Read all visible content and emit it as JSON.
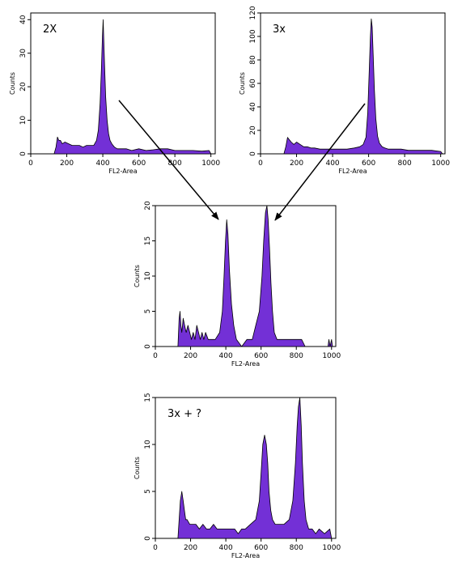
{
  "chart_data": [
    {
      "type": "area",
      "annotation": "2X",
      "xlabel": "FL2-Area",
      "ylabel": "Counts",
      "xlim": [
        0,
        1024
      ],
      "ylim": [
        0,
        42
      ],
      "xticks": [
        0,
        200,
        400,
        600,
        800,
        1000
      ],
      "yticks": [
        0,
        10,
        20,
        30,
        40
      ],
      "series": [
        {
          "x": [
            130,
            140,
            148,
            156,
            165,
            175,
            190,
            210,
            230,
            250,
            270,
            290,
            310,
            330,
            350,
            365,
            375,
            385,
            392,
            398,
            402,
            406,
            410,
            416,
            424,
            432,
            440,
            450,
            465,
            480,
            500,
            530,
            560,
            600,
            640,
            680,
            720,
            760,
            800,
            850,
            900,
            950,
            990,
            1000
          ],
          "y": [
            0,
            2,
            5,
            4,
            4,
            3,
            3.5,
            3,
            2.5,
            2.5,
            2.5,
            2,
            2.5,
            2.5,
            2.5,
            4,
            7,
            15,
            25,
            35,
            40,
            33,
            26,
            17,
            10,
            6,
            4,
            3,
            2,
            1.5,
            1.5,
            1.5,
            1,
            1.5,
            1,
            1.2,
            1.5,
            1.5,
            1,
            1,
            1,
            0.8,
            1,
            0
          ]
        }
      ]
    },
    {
      "type": "area",
      "annotation": "3x",
      "xlabel": "FL2-Area",
      "ylabel": "Counts",
      "xlim": [
        0,
        1024
      ],
      "ylim": [
        0,
        120
      ],
      "xticks": [
        0,
        200,
        400,
        600,
        800,
        1000
      ],
      "yticks": [
        0,
        20,
        40,
        60,
        80,
        100,
        120
      ],
      "series": [
        {
          "x": [
            130,
            140,
            150,
            160,
            170,
            185,
            200,
            220,
            240,
            260,
            280,
            300,
            330,
            360,
            400,
            440,
            480,
            520,
            550,
            570,
            585,
            595,
            603,
            610,
            615,
            620,
            625,
            632,
            640,
            650,
            660,
            675,
            690,
            710,
            740,
            780,
            820,
            860,
            900,
            950,
            1000,
            1010
          ],
          "y": [
            0,
            6,
            14,
            12,
            10,
            8,
            10,
            8,
            6,
            6,
            5,
            5,
            4,
            4,
            4,
            4,
            4,
            5,
            6,
            8,
            14,
            35,
            70,
            100,
            115,
            108,
            85,
            55,
            30,
            15,
            9,
            6,
            5,
            4,
            4,
            4,
            3,
            3,
            3,
            3,
            2,
            0
          ]
        }
      ]
    },
    {
      "type": "area",
      "annotation": "",
      "xlabel": "FL2-Area",
      "ylabel": "Counts",
      "xlim": [
        0,
        1024
      ],
      "ylim": [
        0,
        20
      ],
      "xticks": [
        0,
        200,
        400,
        600,
        800,
        1000
      ],
      "yticks": [
        0,
        5,
        10,
        15,
        20
      ],
      "series": [
        {
          "x": [
            128,
            135,
            140,
            145,
            150,
            158,
            166,
            175,
            185,
            195,
            205,
            215,
            225,
            235,
            245,
            255,
            265,
            275,
            285,
            300,
            340,
            365,
            380,
            390,
            398,
            405,
            412,
            420,
            432,
            445,
            460,
            490,
            520,
            550,
            570,
            590,
            605,
            615,
            625,
            633,
            640,
            648,
            656,
            665,
            675,
            690,
            700,
            720,
            760,
            800,
            830,
            850,
            900,
            950,
            980,
            985,
            992,
            1000,
            1005
          ],
          "y": [
            0,
            4,
            5,
            3,
            2,
            4,
            3,
            2,
            3,
            2,
            1,
            2,
            1,
            3,
            2,
            1,
            2,
            1,
            2,
            1,
            1,
            2,
            5,
            10,
            15,
            18,
            16,
            11,
            6,
            3,
            1,
            0,
            1,
            1,
            3,
            5,
            10,
            15,
            19,
            20,
            18,
            14,
            9,
            5,
            2,
            1,
            1,
            1,
            1,
            1,
            1,
            0,
            0,
            0,
            0,
            1,
            0,
            1,
            0
          ]
        }
      ]
    },
    {
      "type": "area",
      "annotation": "3x + ?",
      "xlabel": "FL2-Area",
      "ylabel": "Counts",
      "xlim": [
        0,
        1024
      ],
      "ylim": [
        0,
        15
      ],
      "xticks": [
        0,
        200,
        400,
        600,
        800,
        1000
      ],
      "yticks": [
        0,
        5,
        10,
        15
      ],
      "series": [
        {
          "x": [
            128,
            135,
            142,
            150,
            158,
            165,
            172,
            180,
            195,
            210,
            230,
            250,
            270,
            290,
            310,
            330,
            350,
            370,
            390,
            410,
            430,
            450,
            470,
            490,
            510,
            540,
            570,
            590,
            600,
            610,
            620,
            630,
            638,
            645,
            655,
            665,
            680,
            700,
            730,
            760,
            780,
            795,
            805,
            812,
            820,
            828,
            835,
            845,
            855,
            870,
            890,
            910,
            930,
            960,
            990,
            1000
          ],
          "y": [
            0,
            2,
            4,
            5,
            4,
            3,
            2,
            2,
            1.5,
            1.5,
            1.5,
            1,
            1.5,
            1,
            1,
            1.5,
            1,
            1,
            1,
            1,
            1,
            1,
            0.5,
            1,
            1,
            1.5,
            2,
            4,
            7,
            10,
            11,
            10,
            8,
            5,
            3,
            2,
            1.5,
            1.5,
            1.5,
            2,
            4,
            8,
            12,
            14,
            15,
            12,
            8,
            4,
            2,
            1,
            1,
            0.5,
            1,
            0.5,
            1,
            0
          ]
        }
      ]
    }
  ]
}
